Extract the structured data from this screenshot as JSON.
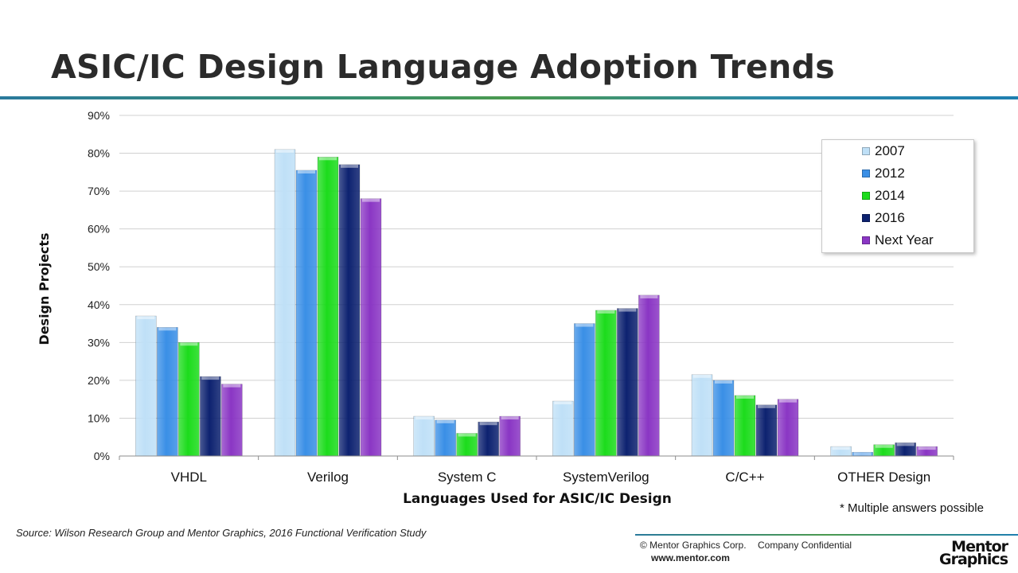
{
  "title": "ASIC/IC Design Language Adoption Trends",
  "chart_data": {
    "type": "bar",
    "categories": [
      "VHDL",
      "Verilog",
      "System C",
      "SystemVerilog",
      "C/C++",
      "OTHER Design"
    ],
    "series": [
      {
        "name": "2007",
        "color": "#bfe0f7",
        "values": [
          37,
          81,
          10.5,
          14.5,
          21.5,
          2.5
        ]
      },
      {
        "name": "2012",
        "color": "#3a8fe6",
        "values": [
          34,
          75.5,
          9.5,
          35,
          20,
          1
        ]
      },
      {
        "name": "2014",
        "color": "#1cdc1c",
        "values": [
          30,
          79,
          6,
          38.5,
          16,
          3
        ]
      },
      {
        "name": "2016",
        "color": "#0d2270",
        "values": [
          21,
          77,
          9,
          39,
          13.5,
          3.5
        ]
      },
      {
        "name": "Next Year",
        "color": "#8a36c4",
        "values": [
          19,
          68,
          10.5,
          42.5,
          15,
          2.5
        ]
      }
    ],
    "xlabel": "Languages Used for ASIC/IC Design",
    "ylabel": "Design Projects",
    "ylim": [
      0,
      90
    ],
    "yticks": [
      "0%",
      "10%",
      "20%",
      "30%",
      "40%",
      "50%",
      "60%",
      "70%",
      "80%",
      "90%"
    ],
    "grid": true,
    "legend_position": "top-right"
  },
  "footnote": "* Multiple answers possible",
  "source": "Source:  Wilson Research Group and Mentor Graphics, 2016 Functional Verification Study",
  "footer": {
    "copyright": "© Mentor Graphics Corp.",
    "confidential": "Company Confidential",
    "website": "www.mentor.com",
    "logo_line1": "Mentor",
    "logo_line2": "Graphics"
  }
}
